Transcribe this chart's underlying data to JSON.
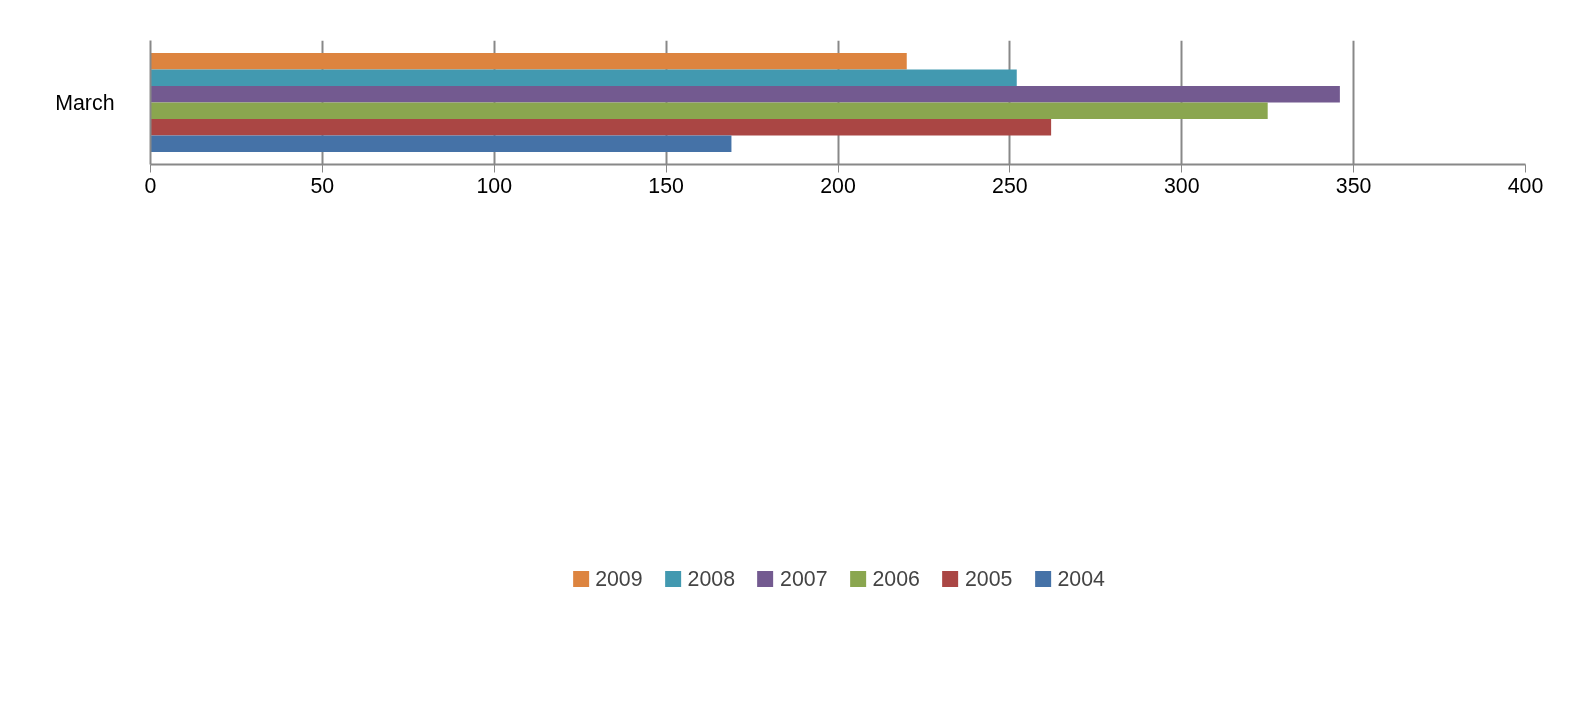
{
  "chart_data": {
    "type": "bar",
    "orientation": "horizontal",
    "categories": [
      "March"
    ],
    "series": [
      {
        "name": "2009",
        "color": "#dd843f",
        "values": [
          220
        ]
      },
      {
        "name": "2008",
        "color": "#4299b0",
        "values": [
          252
        ]
      },
      {
        "name": "2007",
        "color": "#735a90",
        "values": [
          346
        ]
      },
      {
        "name": "2006",
        "color": "#8aa64f",
        "values": [
          325
        ]
      },
      {
        "name": "2005",
        "color": "#aa4644",
        "values": [
          262
        ]
      },
      {
        "name": "2004",
        "color": "#4572a7",
        "values": [
          169
        ]
      }
    ],
    "xlim": [
      0,
      400
    ],
    "xticks": [
      0,
      50,
      100,
      150,
      200,
      250,
      300,
      350,
      400
    ],
    "grid": "x",
    "legend": "bottom"
  }
}
